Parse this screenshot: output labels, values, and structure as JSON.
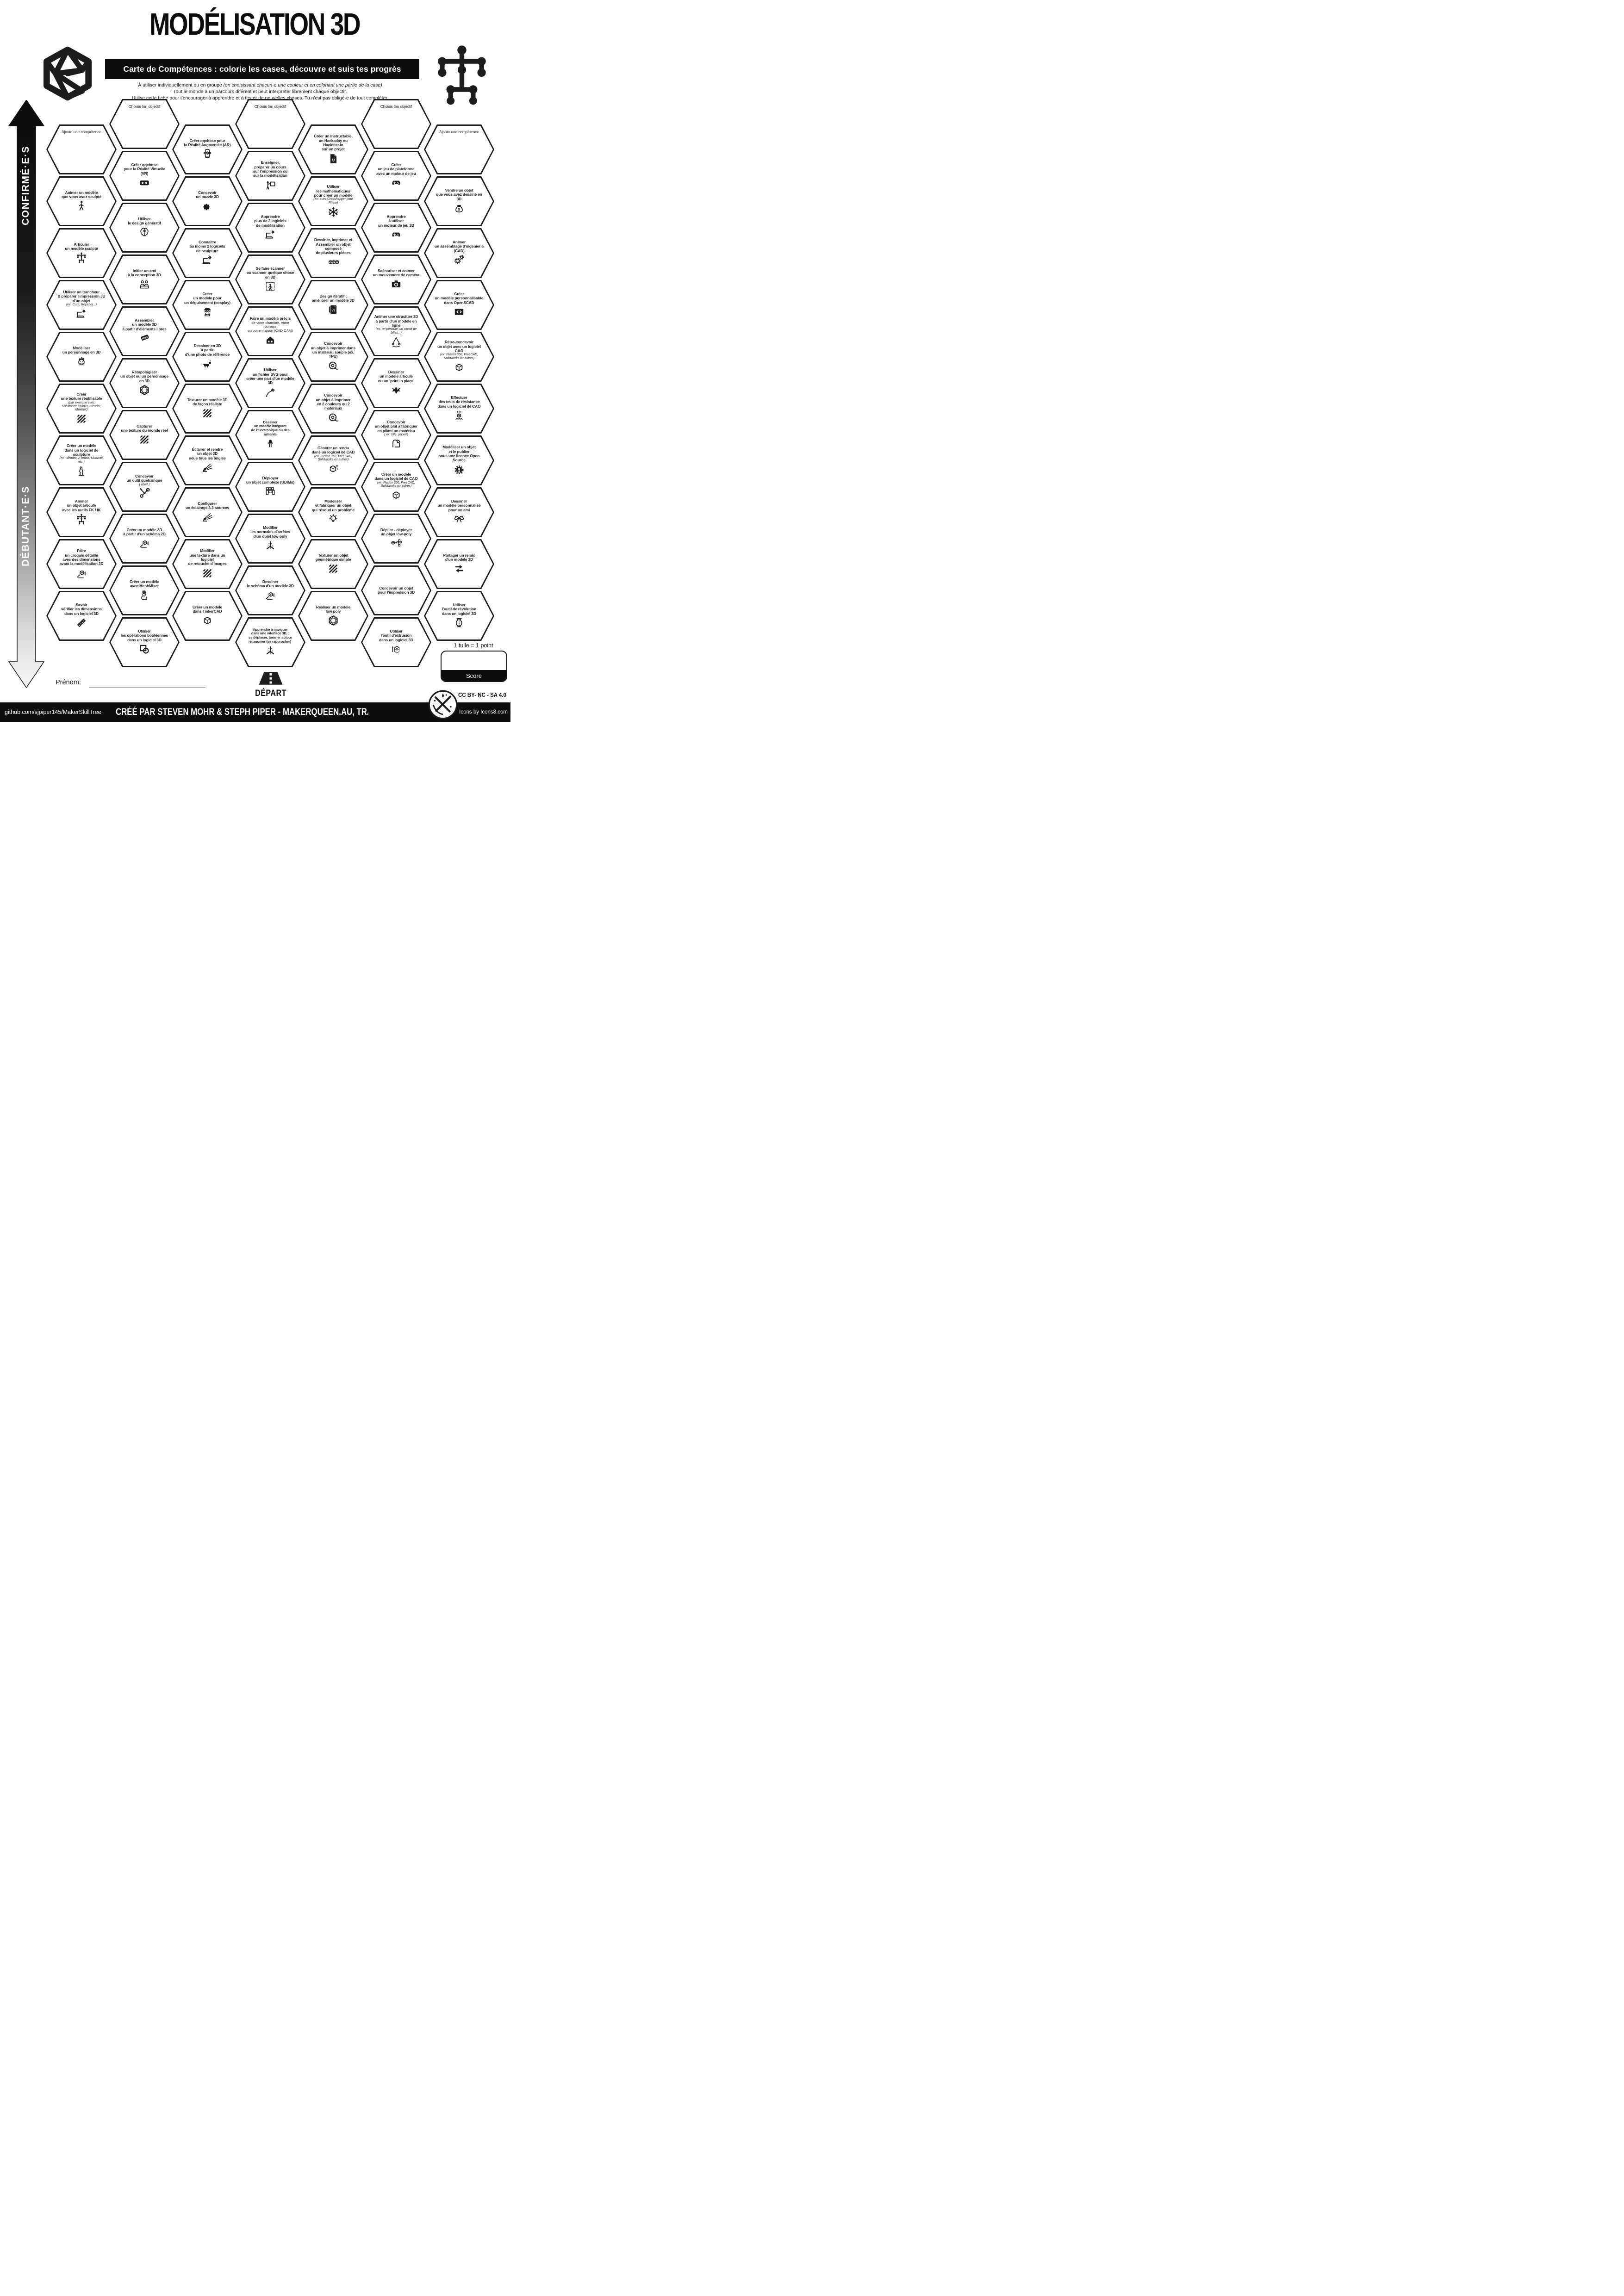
{
  "header": {
    "title": "MODÉLISATION 3D",
    "banner": "Carte de Compétences : colorie les cases, découvre et suis tes progrès",
    "intro_pre": "À utiliser individuellement ou en groupe ",
    "intro_italic": "(en choisissant chacun·e une couleur et en coloriant une partie de la case)",
    "intro_line2": "Tout le monde a un parcours diférent et peut interpréter librement chaque objectif.",
    "intro_line3": "Utilise cette fiche pour t'encourager à apprendre et à tester de nouvelles choses. Tu n'est pas obligé·e de tout compléter."
  },
  "sidebar": {
    "top_label": "CONFIRMÉ·E·S",
    "bottom_label": "DÉBUTANT·E·S"
  },
  "scoring": {
    "rule": "1 tuile = 1 point",
    "score_label": "Score"
  },
  "name_field": {
    "label": "Prénom:"
  },
  "start": {
    "label": "DÉPART"
  },
  "footer": {
    "repo": "github.com/sjpiper145/MakerSkillTree",
    "credit": "CRÉÉ PAR STEVEN MOHR & STEPH PIPER - MAKERQUEEN.AU, TRADUIT PAR LAURE SI",
    "license": "CC BY- NC - SA 4.0",
    "icons_credit": "Icons by Icons8.com"
  },
  "tiles": [
    {
      "col": 1,
      "row": 0,
      "kind": "prompt",
      "title": "Ajoute une compétence"
    },
    {
      "col": 1,
      "row": 1,
      "title": "Animer un modèle\nque vous avez sculpté",
      "icon": "walk"
    },
    {
      "col": 1,
      "row": 2,
      "title": "Articuler\nun modèle sculpté",
      "icon": "rig"
    },
    {
      "col": 1,
      "row": 3,
      "title": "Utiliser un trancheur\n& préparer l'impression 3D\nd'un objet",
      "note": "(ex. Cura, Repetier...)",
      "icon": "laptop-gear"
    },
    {
      "col": 1,
      "row": 4,
      "title": "Modéliser\nun personnage en 3D",
      "icon": "face"
    },
    {
      "col": 1,
      "row": 5,
      "title": "Créer\nune texture réutilisable",
      "note": "(par exemple avec\nSubstance Painter, Blender, Muxbox)",
      "icon": "stripes"
    },
    {
      "col": 1,
      "row": 6,
      "title": "Créer un modèle\ndans un logiciel de sculpture",
      "note": "(ex. Blender, Z-brush, MudBox, etc.)",
      "icon": "statue"
    },
    {
      "col": 1,
      "row": 7,
      "title": "Animer\nun objet articulé\navec les outils FK / IK",
      "icon": "rig"
    },
    {
      "col": 1,
      "row": 8,
      "title": "Faire\nun croquis détaillé\navec des dimensions\navant la modélisation 3D",
      "icon": "sketch"
    },
    {
      "col": 1,
      "row": 9,
      "title": "Savoir\nvérifier les dimensions\ndans un logiciel 3D",
      "icon": "ruler"
    },
    {
      "col": 2,
      "row": 0,
      "kind": "prompt",
      "title": "Choisis ton objectif"
    },
    {
      "col": 2,
      "row": 1,
      "title": "Créer qqchose\npour la Réalité Virtuelle (VR)",
      "icon": "vr"
    },
    {
      "col": 2,
      "row": 2,
      "title": "Utiliser\nle design génératif",
      "icon": "brain"
    },
    {
      "col": 2,
      "row": 3,
      "title": "Initier un ami\nà la conception 3D",
      "icon": "friends"
    },
    {
      "col": 2,
      "row": 4,
      "title": "Assembler\nun modèle 3D\nà partir d'éléments libres",
      "icon": "free"
    },
    {
      "col": 2,
      "row": 5,
      "title": "Rétopologiser\nun objet ou un personnage\nen 3D",
      "icon": "wirehex"
    },
    {
      "col": 2,
      "row": 6,
      "title": "Capturer\nune texture du monde réel",
      "icon": "stripes"
    },
    {
      "col": 2,
      "row": 7,
      "title": "Concevoir\nun outil quelconque",
      "note": "( utile! )",
      "icon": "tools"
    },
    {
      "col": 2,
      "row": 8,
      "title": "Créer un modèle 3D\nà partir d'un schéma 2D",
      "icon": "sketch"
    },
    {
      "col": 2,
      "row": 9,
      "title": "Créer un modèle\navec MeshMixer",
      "icon": "rabbit"
    },
    {
      "col": 2,
      "row": 10,
      "title": "Utiliser\nles opérations booléennes\ndans un logiciel 3D",
      "icon": "boolean"
    },
    {
      "col": 3,
      "row": 0,
      "title": "Créer qqchose pour\nla Réalité Augmentée (AR)",
      "icon": "ar"
    },
    {
      "col": 3,
      "row": 1,
      "title": "Concevoir\nun puzzle 3D",
      "icon": "puzzle"
    },
    {
      "col": 3,
      "row": 2,
      "title": "Connaître\nau moins 2 logiciels\nde sculpture",
      "icon": "laptop-gear"
    },
    {
      "col": 3,
      "row": 3,
      "title": "Créer\nun modèle pour\nun déguisement (cosplay)",
      "icon": "cosplay"
    },
    {
      "col": 3,
      "row": 4,
      "title": "Dessiner en 3D\nà partir\nd'une photo de référence",
      "icon": "dog"
    },
    {
      "col": 3,
      "row": 5,
      "title": "Texturer un modèle 3D\nde façon réaliste",
      "icon": "stripes"
    },
    {
      "col": 3,
      "row": 6,
      "title": "Éclairer et rendre\nun objet 3D\nsous tous les angles",
      "icon": "spotlight"
    },
    {
      "col": 3,
      "row": 7,
      "title": "Configurer\nun éclairage à 3 sources",
      "icon": "spotlight"
    },
    {
      "col": 3,
      "row": 8,
      "title": "Modifier\nune texture dans un logiciel\nde retouche d'images",
      "icon": "stripes"
    },
    {
      "col": 3,
      "row": 9,
      "title": "Créer un modèle\ndans TinkerCAD",
      "icon": "cube"
    },
    {
      "col": 4,
      "row": 0,
      "kind": "prompt",
      "title": "Choisis ton objectif"
    },
    {
      "col": 4,
      "row": 1,
      "title": "Enseigner,\npréparer un cours\nsur l'impression ou\nsur la modélisation",
      "icon": "teacher"
    },
    {
      "col": 4,
      "row": 2,
      "title": "Apprendre\nplus de 3 logiciels\nde modélisation",
      "icon": "laptop-gear"
    },
    {
      "col": 4,
      "row": 3,
      "title": "Se faire scanner\nou scanner quelque chose\nen 3D",
      "icon": "scan"
    },
    {
      "col": 4,
      "row": 4,
      "title": "Faire un modèle précis",
      "sub": "de votre chambre, votre bureau\nou votre maison (CAD CAM)",
      "icon": "house"
    },
    {
      "col": 4,
      "row": 5,
      "title": "Utiliser\nun fichier SVG pour\ncréer une part d'un modèle 3D",
      "icon": "pen"
    },
    {
      "col": 4,
      "row": 6,
      "small": true,
      "title": "Dessiner\nun modèle intégrant\nde l'électronique ou des aimants",
      "icon": "led"
    },
    {
      "col": 4,
      "row": 7,
      "title": "Déployer\nun objet complexe (UDIMs)",
      "icon": "udims"
    },
    {
      "col": 4,
      "row": 8,
      "title": "Modifier\nles normales d'arrêtes\nd'un objet low-poly",
      "icon": "axis3d"
    },
    {
      "col": 4,
      "row": 9,
      "title": "Dessiner\nle schéma d'un modèle 3D",
      "icon": "sketch"
    },
    {
      "col": 4,
      "row": 10,
      "small": true,
      "title": "Apprendre à naviguer\ndans une interface 3D, :\nse déplacer, tourner autour\net zoomer (se rapprocher)",
      "icon": "axis3d"
    },
    {
      "col": 5,
      "row": 0,
      "title": "Créer un Instructable,\nun Hackaday ou Hackster.io\nsur un projet",
      "icon": "robotdoc"
    },
    {
      "col": 5,
      "row": 1,
      "title": "Utiliser\nles mathématiques\npour créer un modèle",
      "note": "(ex. avec Grasshopper pour Rhino)",
      "icon": "snow"
    },
    {
      "col": 5,
      "row": 2,
      "title": "Dessiner, Imprimer et\nAssembler un objet composé\nde plusieurs pièces",
      "icon": "cubes3"
    },
    {
      "col": 5,
      "row": 3,
      "title": "Design itératif :\naméliorer un modèle 3D",
      "icon": "v2doc"
    },
    {
      "col": 5,
      "row": 4,
      "title": "Concevoir\nun objet à imprimer dans\nun matériau souple (ex. TPU)",
      "icon": "spool"
    },
    {
      "col": 5,
      "row": 5,
      "title": "Concevoir\nun objet à imprimer\nen 2 couleurs ou 2 matériaux",
      "icon": "spool"
    },
    {
      "col": 5,
      "row": 6,
      "title": "Générer un rendu\ndans un logiciel de CAD",
      "note": "(ex. Fusion 360, FreeCAD,\nSolidworks ou autres)",
      "icon": "cubespark"
    },
    {
      "col": 5,
      "row": 7,
      "title": "Modéliser\net fabriquer un objet\nqui résoud un problème",
      "icon": "bulb"
    },
    {
      "col": 5,
      "row": 8,
      "title": "Texturer un objet\ngéométrique simple",
      "icon": "stripes"
    },
    {
      "col": 5,
      "row": 9,
      "title": "Réaliser un modèle\nlow poly",
      "icon": "wirehex"
    },
    {
      "col": 6,
      "row": 0,
      "kind": "prompt",
      "title": "Choisis ton objectif"
    },
    {
      "col": 6,
      "row": 1,
      "title": "Créer\nun jeu de plateforme\navec un moteur de jeu",
      "icon": "gamepad"
    },
    {
      "col": 6,
      "row": 2,
      "title": "Apprendre\nà utiliser\nun moteur de jeu 3D",
      "icon": "gamepad"
    },
    {
      "col": 6,
      "row": 3,
      "title": "Scénariser et animer\nun mouvement de caméra",
      "icon": "camera"
    },
    {
      "col": 6,
      "row": 4,
      "title": "Animer une structure 3D\nà partir d'un modèle en ligne",
      "note": "(ex. un pendule, un circuit de billes...)",
      "icon": "pendulum"
    },
    {
      "col": 6,
      "row": 5,
      "title": "Dessiner\nun modèle articulé\nou un 'print in place'",
      "icon": "dragon"
    },
    {
      "col": 6,
      "row": 6,
      "title": "Concevoir\nun objet plat à fabriquer\nen pliant un matériau",
      "note": "( ex. tôle, papier)",
      "icon": "fold"
    },
    {
      "col": 6,
      "row": 7,
      "title": "Créer un modèle\ndans un logiciel de CAO",
      "note": "(ex. Fusion 360, FreeCAD,\nSolidworks ou autres)",
      "icon": "cube"
    },
    {
      "col": 6,
      "row": 8,
      "title": "Déplier - déployer\nun objet low-poly",
      "icon": "unfold"
    },
    {
      "col": 6,
      "row": 9,
      "title": "Concevoir un objet\npour  l'impression 3D"
    },
    {
      "col": 6,
      "row": 10,
      "title": "Utiliser\nl'outil d'extrusion\ndans un logiciel 3D",
      "icon": "extrude"
    },
    {
      "col": 7,
      "row": 0,
      "kind": "prompt",
      "title": "Ajoute une compétence"
    },
    {
      "col": 7,
      "row": 1,
      "title": "Vendre un objet\nque vous avez dessiné en 3D",
      "icon": "moneybag"
    },
    {
      "col": 7,
      "row": 2,
      "title": "Animer\nun assemblage d'ingénierie\n(CAD)",
      "icon": "gears"
    },
    {
      "col": 7,
      "row": 3,
      "title": "Créer\nun modèle personnalisable\ndans OpenSCAD",
      "icon": "code"
    },
    {
      "col": 7,
      "row": 4,
      "title": "Rétro-concevoir\nun objet avec un logiciel CAO",
      "note": "(ex. Fusion 360, FreeCAD,\nSolidworks ou autres)",
      "icon": "cube"
    },
    {
      "col": 7,
      "row": 5,
      "title": "Effectuer\ndes tests de résistance\ndans un logiciel de CAO",
      "icon": "stress"
    },
    {
      "col": 7,
      "row": 6,
      "title": "Modéliser un objet\net le publier\nsous une licence Open Source",
      "icon": "osgear"
    },
    {
      "col": 7,
      "row": 7,
      "title": "Dessiner\nun modèle personnalisé\npour un ami",
      "icon": "gift"
    },
    {
      "col": 7,
      "row": 8,
      "title": "Partager un remix\nd'un modèle 3D",
      "icon": "remix"
    },
    {
      "col": 7,
      "row": 9,
      "title": "Utiliser\nl'outil de révolution\ndans un logiciel 3D",
      "icon": "vase"
    }
  ]
}
